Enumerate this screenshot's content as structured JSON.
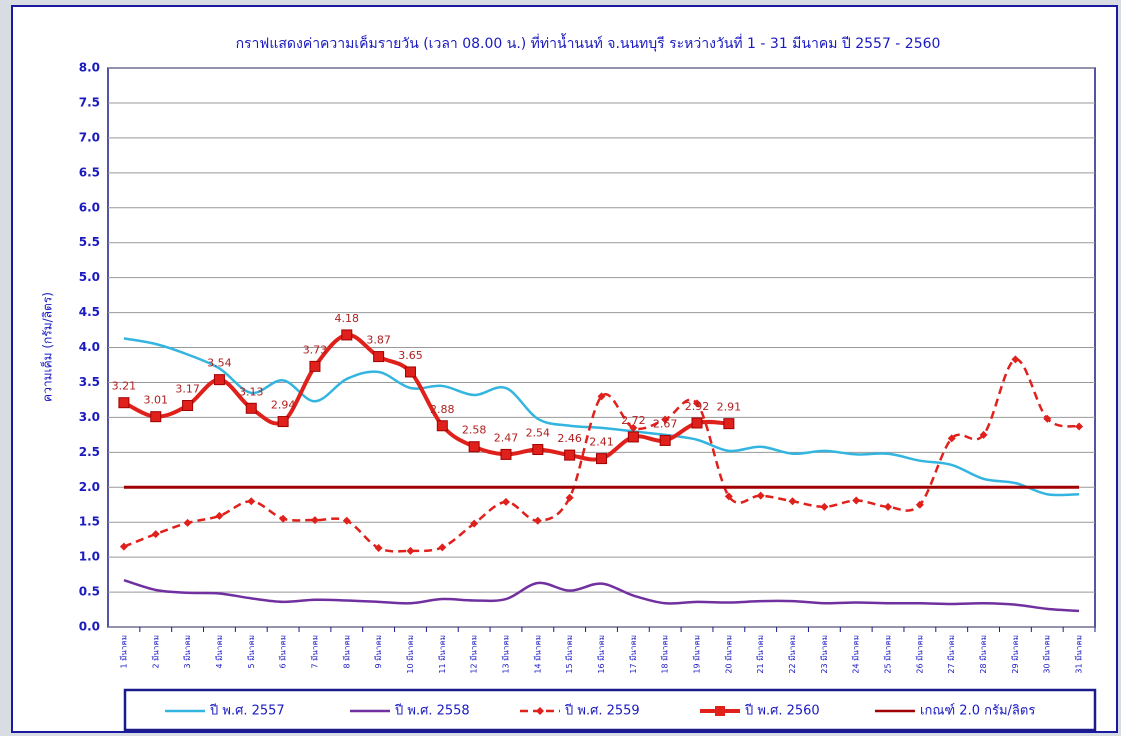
{
  "chart_data": {
    "type": "line",
    "title": "กราฟแสดงค่าความเค็มรายวัน (เวลา 08.00 น.) ที่ท่าน้ำนนท์ จ.นนทบุรี ระหว่างวันที่ 1 - 31 มีนาคม ปี 2557 - 2560",
    "y_label": "ความเค็ม (กรัม/ลิตร)",
    "categories": [
      "1 มีนาคม",
      "2 มีนาคม",
      "3 มีนาคม",
      "4 มีนาคม",
      "5 มีนาคม",
      "6 มีนาคม",
      "7 มีนาคม",
      "8 มีนาคม",
      "9 มีนาคม",
      "10 มีนาคม",
      "11 มีนาคม",
      "12 มีนาคม",
      "13 มีนาคม",
      "14 มีนาคม",
      "15 มีนาคม",
      "16 มีนาคม",
      "17 มีนาคม",
      "18 มีนาคม",
      "19 มีนาคม",
      "20 มีนาคม",
      "21 มีนาคม",
      "22 มีนาคม",
      "23 มีนาคม",
      "24 มีนาคม",
      "25 มีนาคม",
      "26 มีนาคม",
      "27 มีนาคม",
      "28 มีนาคม",
      "29 มีนาคม",
      "30 มีนาคม",
      "31 มีนาคม"
    ],
    "ylim": [
      0,
      8
    ],
    "yticks": [
      {
        "value": 0,
        "label": "0.0"
      },
      0.5,
      {
        "value": 1,
        "label": "1.0"
      },
      1.5,
      {
        "value": 2,
        "label": "2.0"
      },
      2.5,
      {
        "value": 3,
        "label": "3.0"
      },
      3.5,
      {
        "value": 4,
        "label": "4.0"
      },
      4.5,
      {
        "value": 5,
        "label": "5.0"
      },
      5.5,
      {
        "value": 6,
        "label": "6.0"
      },
      6.5,
      {
        "value": 7,
        "label": "7.0"
      },
      7.5,
      {
        "value": 8,
        "label": "8.0"
      }
    ],
    "grid": true,
    "legend": "bottom",
    "series": [
      {
        "name": "ปี พ.ศ. 2557",
        "color": "#33b5e0",
        "style": "solid",
        "marker": "none",
        "values": [
          4.13,
          4.05,
          3.9,
          3.7,
          3.35,
          3.53,
          3.23,
          3.55,
          3.65,
          3.42,
          3.45,
          3.32,
          3.42,
          2.98,
          2.88,
          2.85,
          2.8,
          2.75,
          2.68,
          2.52,
          2.58,
          2.48,
          2.52,
          2.47,
          2.48,
          2.38,
          2.32,
          2.12,
          2.06,
          1.9,
          1.9
        ]
      },
      {
        "name": "ปี พ.ศ. 2558",
        "color": "#7030a0",
        "style": "solid",
        "marker": "none",
        "values": [
          0.67,
          0.53,
          0.49,
          0.48,
          0.41,
          0.36,
          0.39,
          0.38,
          0.36,
          0.34,
          0.4,
          0.38,
          0.4,
          0.63,
          0.52,
          0.62,
          0.45,
          0.34,
          0.36,
          0.35,
          0.37,
          0.37,
          0.34,
          0.35,
          0.34,
          0.34,
          0.33,
          0.34,
          0.32,
          0.26,
          0.23
        ]
      },
      {
        "name": "ปี พ.ศ. 2559",
        "color": "#e0201b",
        "style": "dashed",
        "marker": "diamond",
        "values": [
          1.15,
          1.33,
          1.49,
          1.59,
          1.8,
          1.55,
          1.53,
          1.52,
          1.13,
          1.09,
          1.14,
          1.48,
          1.79,
          1.52,
          1.85,
          3.3,
          2.85,
          2.97,
          3.2,
          1.87,
          1.88,
          1.8,
          1.72,
          1.81,
          1.72,
          1.75,
          2.7,
          2.75,
          3.83,
          2.98,
          2.87
        ]
      },
      {
        "name": "ปี พ.ศ. 2560",
        "color": "#e0201b",
        "style": "thick",
        "marker": "square",
        "labels": true,
        "values": [
          3.21,
          3.01,
          3.17,
          3.54,
          3.13,
          2.94,
          3.73,
          4.18,
          3.87,
          3.65,
          2.88,
          2.58,
          2.47,
          2.54,
          2.46,
          2.41,
          2.72,
          2.67,
          2.92,
          2.91,
          null,
          null,
          null,
          null,
          null,
          null,
          null,
          null,
          null,
          null,
          null
        ]
      },
      {
        "name": "เกณฑ์ 2.0 กรัม/ลิตร",
        "color": "#a00000",
        "style": "straight",
        "marker": "none",
        "values": [
          2,
          2,
          2,
          2,
          2,
          2,
          2,
          2,
          2,
          2,
          2,
          2,
          2,
          2,
          2,
          2,
          2,
          2,
          2,
          2,
          2,
          2,
          2,
          2,
          2,
          2,
          2,
          2,
          2,
          2,
          2
        ]
      }
    ]
  }
}
